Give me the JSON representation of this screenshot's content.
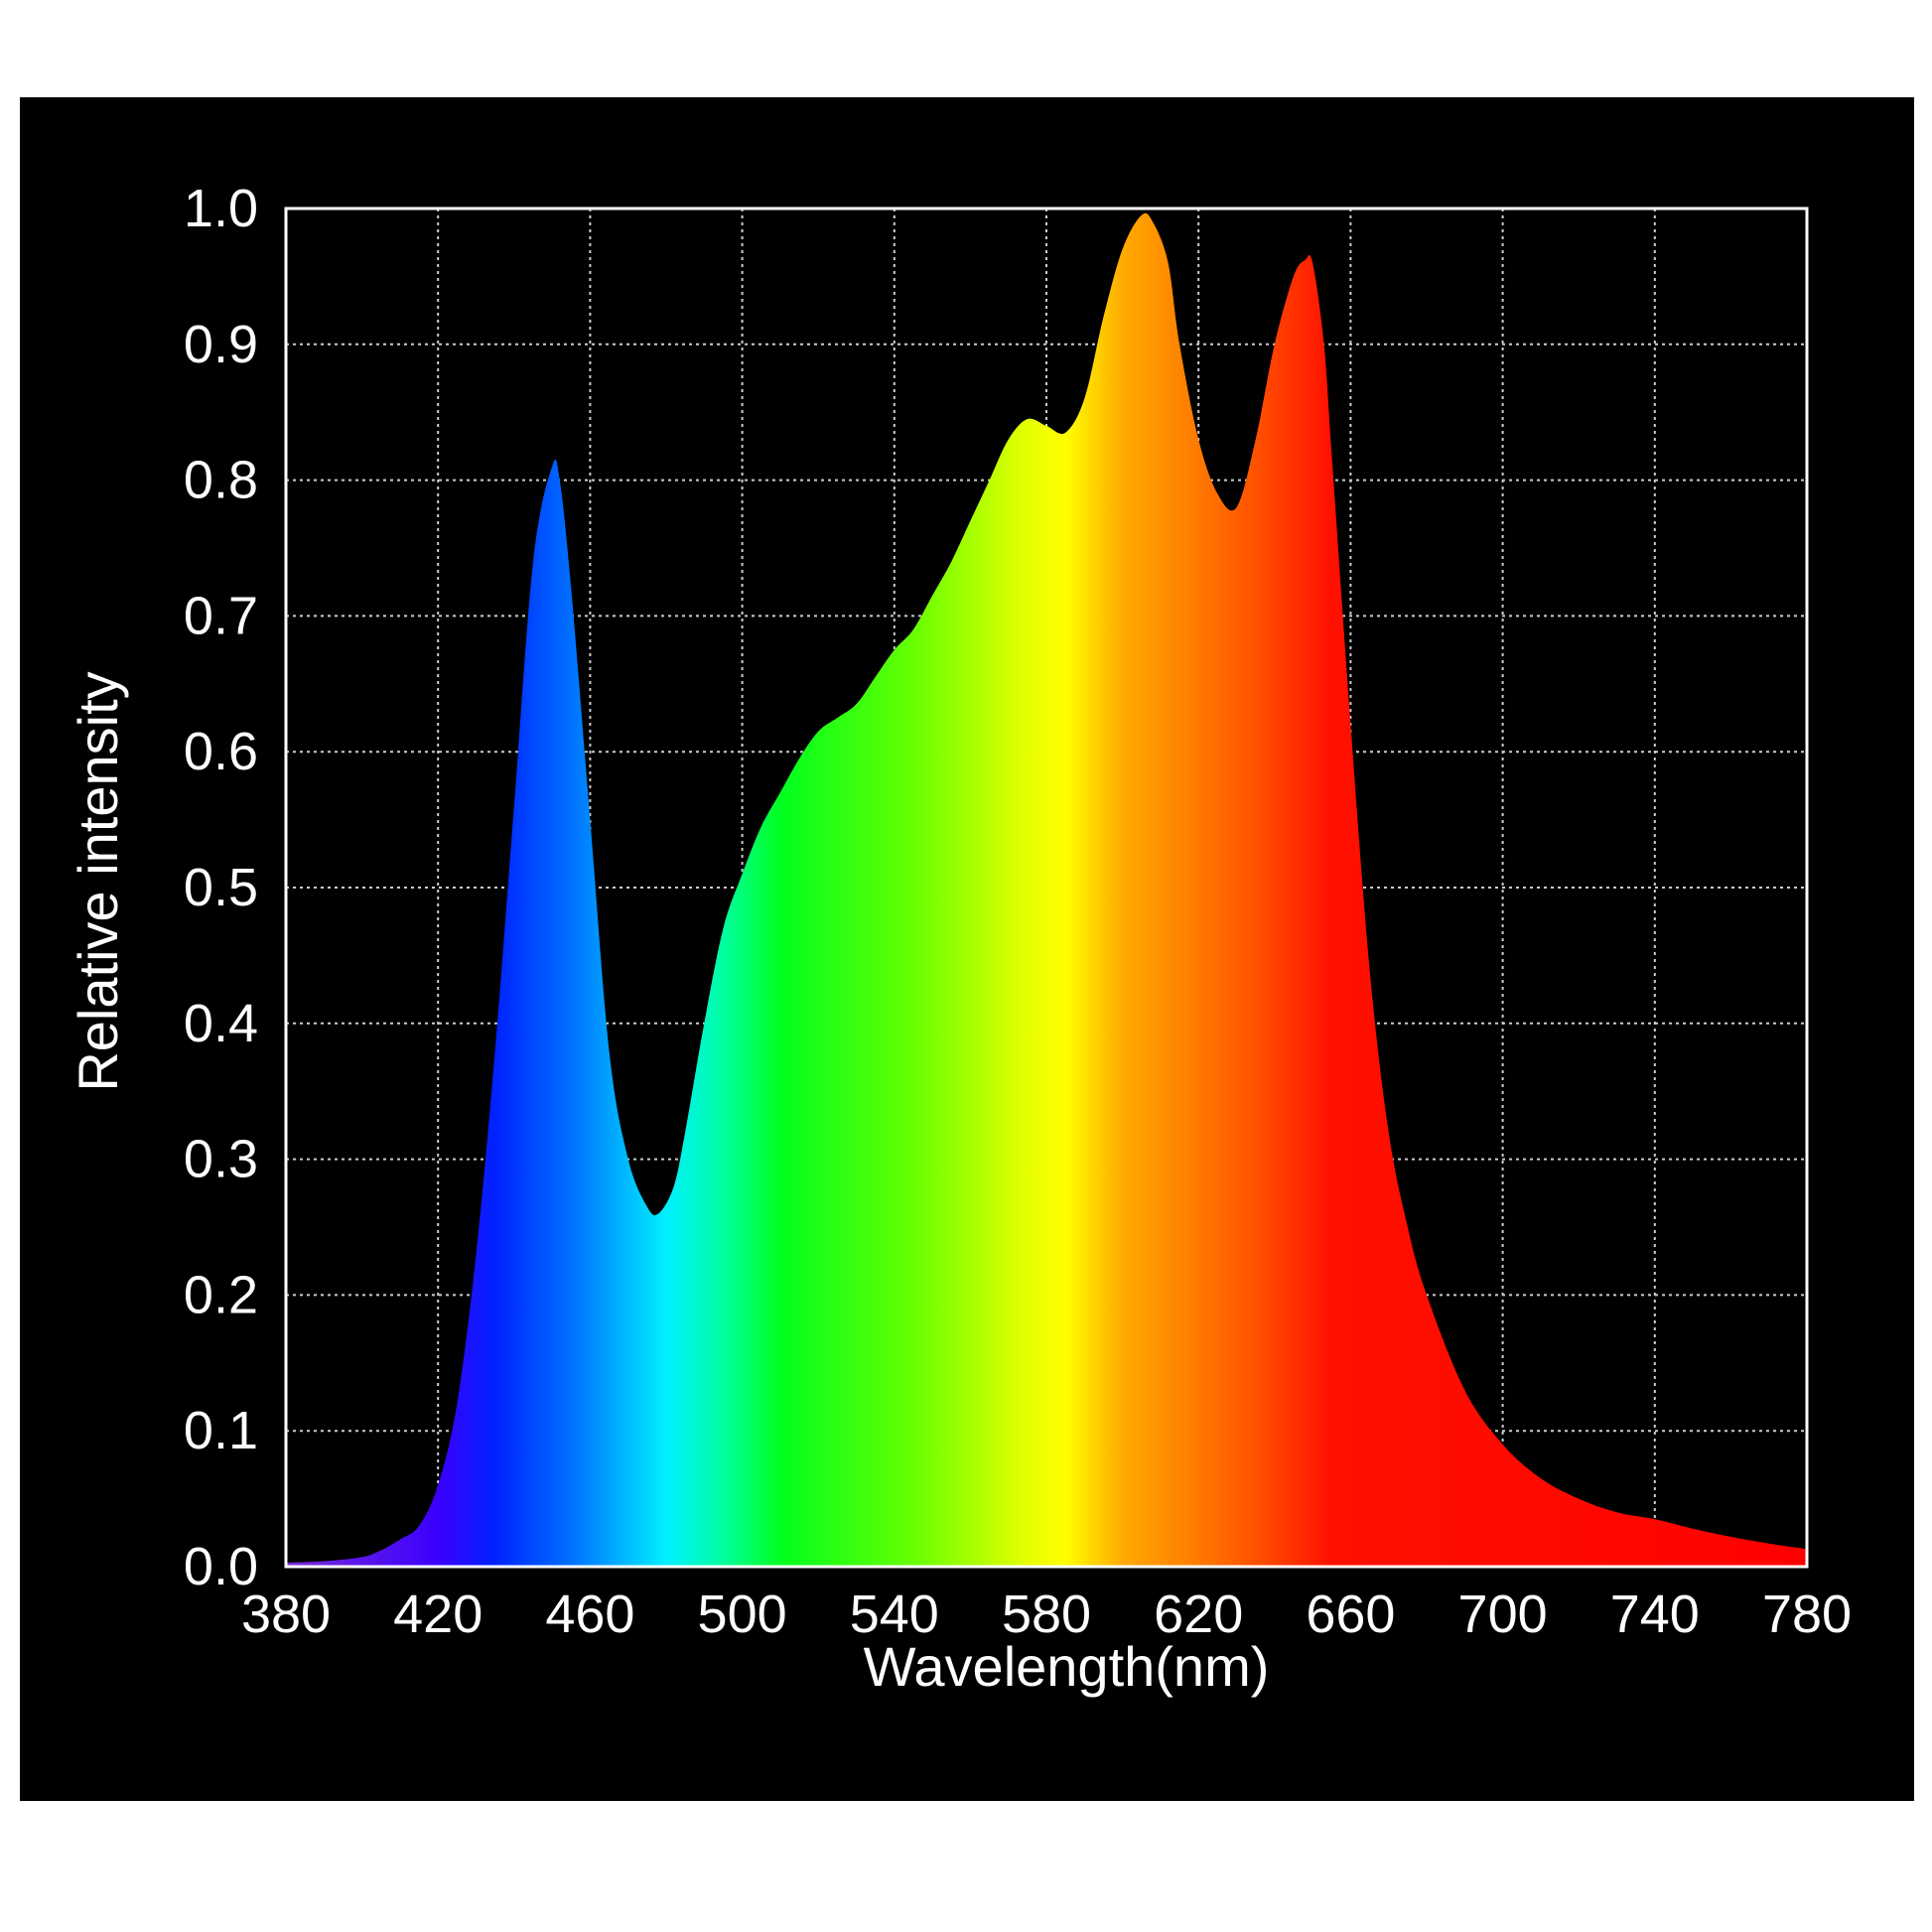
{
  "chart_data": {
    "type": "area",
    "title": "",
    "xlabel": "Wavelength(nm)",
    "ylabel": "Relative intensity",
    "xlim": [
      380,
      780
    ],
    "ylim": [
      0.0,
      1.0
    ],
    "xticks": [
      "380",
      "420",
      "460",
      "500",
      "540",
      "580",
      "620",
      "660",
      "700",
      "740",
      "780"
    ],
    "yticks": [
      "0.0",
      "0.1",
      "0.2",
      "0.3",
      "0.4",
      "0.5",
      "0.6",
      "0.7",
      "0.8",
      "0.9",
      "1.0"
    ],
    "grid": true,
    "fill": "visible-spectrum gradient",
    "background_color": "#000000",
    "grid_color": "#cccccc",
    "text_color": "#ffffff",
    "series": [
      {
        "x": [
          380,
          390,
          400,
          405,
          410,
          415,
          420,
          425,
          430,
          435,
          440,
          445,
          450,
          452,
          455,
          460,
          465,
          470,
          475,
          478,
          482,
          485,
          490,
          495,
          500,
          505,
          510,
          515,
          520,
          525,
          530,
          535,
          540,
          545,
          550,
          555,
          560,
          565,
          570,
          575,
          580,
          585,
          590,
          595,
          600,
          605,
          608,
          612,
          615,
          620,
          625,
          630,
          635,
          640,
          645,
          648,
          650,
          653,
          655,
          660,
          665,
          670,
          675,
          680,
          690,
          700,
          710,
          720,
          730,
          740,
          750,
          760,
          770,
          780
        ],
        "y": [
          0.003,
          0.004,
          0.007,
          0.012,
          0.02,
          0.03,
          0.06,
          0.12,
          0.23,
          0.38,
          0.56,
          0.74,
          0.81,
          0.8,
          0.72,
          0.55,
          0.38,
          0.3,
          0.265,
          0.26,
          0.28,
          0.32,
          0.4,
          0.47,
          0.51,
          0.545,
          0.57,
          0.595,
          0.615,
          0.625,
          0.635,
          0.655,
          0.675,
          0.69,
          0.715,
          0.74,
          0.77,
          0.8,
          0.83,
          0.845,
          0.84,
          0.835,
          0.86,
          0.92,
          0.97,
          0.995,
          0.99,
          0.96,
          0.9,
          0.83,
          0.79,
          0.78,
          0.83,
          0.9,
          0.95,
          0.962,
          0.96,
          0.9,
          0.82,
          0.62,
          0.44,
          0.32,
          0.25,
          0.2,
          0.13,
          0.09,
          0.065,
          0.05,
          0.04,
          0.035,
          0.028,
          0.022,
          0.017,
          0.013
        ]
      }
    ],
    "gradient_stops": [
      {
        "nm": 380,
        "color": "#7a2bd6"
      },
      {
        "nm": 420,
        "color": "#3a00ff"
      },
      {
        "nm": 435,
        "color": "#0022ff"
      },
      {
        "nm": 455,
        "color": "#0070ff"
      },
      {
        "nm": 480,
        "color": "#00f0ff"
      },
      {
        "nm": 495,
        "color": "#00ffa0"
      },
      {
        "nm": 510,
        "color": "#00ff20"
      },
      {
        "nm": 545,
        "color": "#66ff00"
      },
      {
        "nm": 575,
        "color": "#e6ff00"
      },
      {
        "nm": 585,
        "color": "#ffff00"
      },
      {
        "nm": 600,
        "color": "#ffaa00"
      },
      {
        "nm": 630,
        "color": "#ff6000"
      },
      {
        "nm": 655,
        "color": "#ff1000"
      },
      {
        "nm": 780,
        "color": "#ff0000"
      }
    ]
  }
}
